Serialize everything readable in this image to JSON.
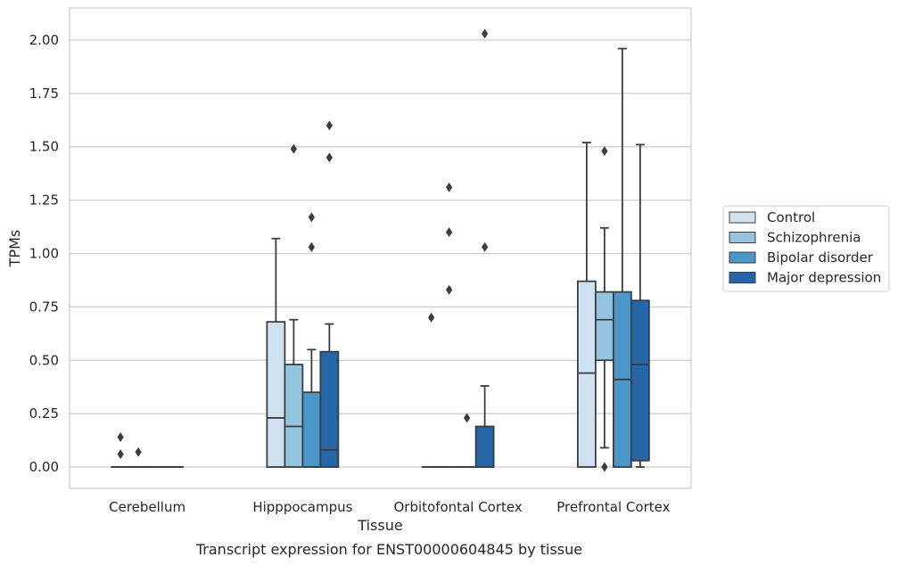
{
  "caption": "Transcript expression for ENST00000604845 by tissue",
  "chart_data": {
    "type": "box",
    "xlabel": "Tissue",
    "ylabel": "TPMs",
    "ylim": [
      -0.1,
      2.15
    ],
    "yticks": [
      "0.00",
      "0.25",
      "0.50",
      "0.75",
      "1.00",
      "1.25",
      "1.50",
      "1.75",
      "2.00"
    ],
    "ytick_values": [
      0,
      0.25,
      0.5,
      0.75,
      1.0,
      1.25,
      1.5,
      1.75,
      2.0
    ],
    "grid": "horizontal",
    "legend_placement": "right",
    "categories": [
      "Cerebellum",
      "Hipppocampus",
      "Orbitofontal Cortex",
      "Prefrontal Cortex"
    ],
    "series": [
      {
        "name": "Control",
        "color": "#d0e1f2",
        "boxes": [
          {
            "q1": 0,
            "median": 0,
            "q3": 0,
            "whislo": 0,
            "whishi": 0,
            "fliers": [
              0.14,
              0.06
            ]
          },
          {
            "q1": 0,
            "median": 0.23,
            "q3": 0.68,
            "whislo": 0,
            "whishi": 1.07,
            "fliers": []
          },
          {
            "q1": 0,
            "median": 0,
            "q3": 0,
            "whislo": 0,
            "whishi": 0,
            "fliers": [
              0.7
            ]
          },
          {
            "q1": 0,
            "median": 0.44,
            "q3": 0.87,
            "whislo": 0,
            "whishi": 1.52,
            "fliers": []
          }
        ]
      },
      {
        "name": "Schizophrenia",
        "color": "#94c4df",
        "boxes": [
          {
            "q1": 0,
            "median": 0,
            "q3": 0,
            "whislo": 0,
            "whishi": 0,
            "fliers": [
              0.07
            ]
          },
          {
            "q1": 0,
            "median": 0.19,
            "q3": 0.48,
            "whislo": 0,
            "whishi": 0.69,
            "fliers": [
              1.49
            ]
          },
          {
            "q1": 0,
            "median": 0,
            "q3": 0,
            "whislo": 0,
            "whishi": 0,
            "fliers": [
              1.31,
              1.1,
              0.83
            ]
          },
          {
            "q1": 0.5,
            "median": 0.69,
            "q3": 0.82,
            "whislo": 0.09,
            "whishi": 1.12,
            "fliers": [
              1.48,
              0.0
            ]
          }
        ]
      },
      {
        "name": "Bipolar disorder",
        "color": "#4a98c9",
        "boxes": [
          {
            "q1": 0,
            "median": 0,
            "q3": 0,
            "whislo": 0,
            "whishi": 0,
            "fliers": []
          },
          {
            "q1": 0,
            "median": 0,
            "q3": 0.35,
            "whislo": 0,
            "whishi": 0.55,
            "fliers": [
              1.17,
              1.03
            ]
          },
          {
            "q1": 0,
            "median": 0,
            "q3": 0,
            "whislo": 0,
            "whishi": 0,
            "fliers": [
              0.23
            ]
          },
          {
            "q1": 0,
            "median": 0.41,
            "q3": 0.82,
            "whislo": 0,
            "whishi": 1.96,
            "fliers": []
          }
        ]
      },
      {
        "name": "Major depression",
        "color": "#2466a8",
        "boxes": [
          {
            "q1": 0,
            "median": 0,
            "q3": 0,
            "whislo": 0,
            "whishi": 0,
            "fliers": []
          },
          {
            "q1": 0,
            "median": 0.08,
            "q3": 0.54,
            "whislo": 0,
            "whishi": 0.67,
            "fliers": [
              1.6,
              1.45
            ]
          },
          {
            "q1": 0,
            "median": 0,
            "q3": 0.19,
            "whislo": 0,
            "whishi": 0.38,
            "fliers": [
              2.03,
              1.03
            ]
          },
          {
            "q1": 0.03,
            "median": 0.48,
            "q3": 0.78,
            "whislo": 0,
            "whishi": 1.51,
            "fliers": []
          }
        ]
      }
    ]
  }
}
